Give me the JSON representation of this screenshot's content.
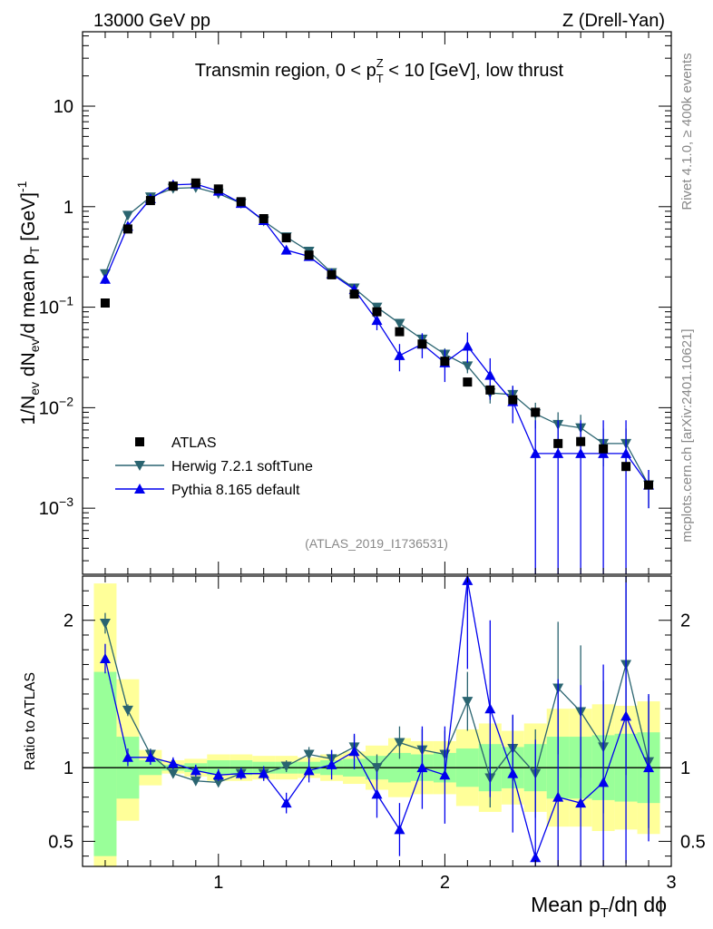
{
  "header": {
    "left": "13000 GeV pp",
    "right": "Z (Drell-Yan)"
  },
  "side": {
    "rivet": "Rivet 4.1.0, ≥ 400k events",
    "mcplots": "mcplots.cern.ch [arXiv:2401.10621]"
  },
  "chart_data": [
    {
      "type": "line",
      "panel": "main",
      "title": "Transmin region, 0 < p_T^Z < 10 [GeV], low thrust",
      "title_parts": {
        "pre": "Transmin region, 0 < p",
        "sup": "Z",
        "sub": "T",
        "post": " < 10 [GeV], low thrust"
      },
      "ylabel": "1/N_ev dN_ev/d mean p_T [GeV]^-1",
      "ylabel_parts": {
        "a": "1/N",
        "a_sub": "ev",
        "b": " dN",
        "b_sub": "ev",
        "c": "/d mean p",
        "c_sub": "T",
        "d": " [GeV]",
        "d_sup": "-1"
      },
      "yscale": "log",
      "ylim": [
        0.00022,
        55
      ],
      "xlim": [
        0.4,
        3.0
      ],
      "yticks": [
        {
          "value": 10,
          "base": "10",
          "exp": ""
        },
        {
          "value": 1,
          "base": "1",
          "exp": ""
        },
        {
          "value": 0.1,
          "base": "10",
          "exp": "−1"
        },
        {
          "value": 0.01,
          "base": "10",
          "exp": "−2"
        },
        {
          "value": 0.001,
          "base": "10",
          "exp": "−3"
        }
      ],
      "watermark": "(ATLAS_2019_I1736531)",
      "legend": [
        "ATLAS",
        "Herwig 7.2.1 softTune",
        "Pythia 8.165 default"
      ],
      "legend_position": "lower-left",
      "x": [
        0.5,
        0.6,
        0.7,
        0.8,
        0.9,
        1.0,
        1.1,
        1.2,
        1.3,
        1.4,
        1.5,
        1.6,
        1.7,
        1.8,
        1.9,
        2.0,
        2.1,
        2.2,
        2.3,
        2.4,
        2.5,
        2.6,
        2.7,
        2.8,
        2.9
      ],
      "series": [
        {
          "name": "ATLAS",
          "color": "#000000",
          "marker": "square",
          "values": [
            0.11,
            0.6,
            1.15,
            1.6,
            1.72,
            1.5,
            1.12,
            0.76,
            0.49,
            0.33,
            0.21,
            0.135,
            0.09,
            0.057,
            0.043,
            0.029,
            0.018,
            0.015,
            0.012,
            0.009,
            0.0044,
            0.0046,
            0.0039,
            0.0026,
            0.0017
          ]
        },
        {
          "name": "Herwig 7.2.1 softTune",
          "color": "#2a6470",
          "marker": "triangle-down",
          "values": [
            0.215,
            0.82,
            1.25,
            1.52,
            1.55,
            1.35,
            1.08,
            0.72,
            0.5,
            0.36,
            0.22,
            0.155,
            0.1,
            0.069,
            0.048,
            0.034,
            0.026,
            0.014,
            0.0135,
            0.0087,
            0.0068,
            0.0063,
            0.0044,
            0.0044,
            0.0017
          ],
          "err_lo": [
            0.015,
            0.03,
            0.04,
            0.05,
            0.05,
            0.04,
            0.03,
            0.03,
            0.02,
            0.02,
            0.015,
            0.012,
            0.009,
            0.007,
            0.006,
            0.005,
            0.004,
            0.003,
            0.003,
            0.0025,
            0.0022,
            0.0022,
            0.0018,
            0.0018,
            0.0007
          ],
          "err_hi": [
            0.015,
            0.03,
            0.04,
            0.05,
            0.05,
            0.04,
            0.03,
            0.03,
            0.02,
            0.02,
            0.015,
            0.012,
            0.009,
            0.007,
            0.006,
            0.005,
            0.004,
            0.003,
            0.003,
            0.0025,
            0.0022,
            0.0022,
            0.0018,
            0.0018,
            0.0007
          ]
        },
        {
          "name": "Pythia 8.165 default",
          "color": "#0000ee",
          "marker": "triangle-up",
          "values": [
            0.19,
            0.64,
            1.2,
            1.65,
            1.68,
            1.43,
            1.08,
            0.73,
            0.37,
            0.32,
            0.215,
            0.15,
            0.074,
            0.033,
            0.043,
            0.028,
            0.041,
            0.021,
            0.0115,
            0.0035,
            0.0035,
            0.0035,
            0.0035,
            0.0035,
            0.0017
          ],
          "err_lo": [
            0.02,
            0.04,
            0.05,
            0.06,
            0.06,
            0.05,
            0.04,
            0.04,
            0.03,
            0.025,
            0.02,
            0.018,
            0.015,
            0.01,
            0.012,
            0.01,
            0.013,
            0.009,
            0.0045,
            0.0034,
            0.0034,
            0.0034,
            0.0034,
            0.0034,
            0.0007
          ],
          "err_hi": [
            0.02,
            0.04,
            0.05,
            0.06,
            0.06,
            0.05,
            0.04,
            0.04,
            0.03,
            0.025,
            0.02,
            0.018,
            0.015,
            0.01,
            0.012,
            0.01,
            0.015,
            0.01,
            0.005,
            0.004,
            0.004,
            0.004,
            0.004,
            0.004,
            0.0007
          ]
        }
      ]
    },
    {
      "type": "line",
      "panel": "ratio",
      "ylabel": "Ratio to ATLAS",
      "xlabel": "Mean p_T/dη dϕ",
      "xlabel_parts": {
        "pre": "Mean p",
        "sub": "T",
        "post": "/dη dϕ"
      },
      "ylim": [
        0.33,
        2.3
      ],
      "xlim": [
        0.4,
        3.0
      ],
      "yticks": [
        0.5,
        1,
        2
      ],
      "ytick_labels": [
        "0.5",
        "1",
        "2"
      ],
      "xticks": [
        1,
        2,
        3
      ],
      "xtick_labels": [
        "1",
        "2",
        "3"
      ],
      "reference": 1.0,
      "bands": {
        "x_edges": [
          0.45,
          0.55,
          0.65,
          0.75,
          0.85,
          0.95,
          1.05,
          1.15,
          1.25,
          1.35,
          1.45,
          1.55,
          1.65,
          1.75,
          1.85,
          1.95,
          2.05,
          2.15,
          2.25,
          2.35,
          2.45,
          2.55,
          2.65,
          2.75,
          2.85,
          2.95
        ],
        "green_lo": [
          0.4,
          0.79,
          0.95,
          0.98,
          0.97,
          0.95,
          0.95,
          0.96,
          0.96,
          0.96,
          0.95,
          0.94,
          0.92,
          0.9,
          0.91,
          0.9,
          0.87,
          0.84,
          0.86,
          0.84,
          0.79,
          0.79,
          0.78,
          0.77,
          0.76
        ],
        "green_hi": [
          1.65,
          1.21,
          1.05,
          1.02,
          1.03,
          1.05,
          1.05,
          1.04,
          1.04,
          1.04,
          1.05,
          1.06,
          1.08,
          1.1,
          1.09,
          1.1,
          1.13,
          1.16,
          1.14,
          1.16,
          1.21,
          1.21,
          1.22,
          1.23,
          1.24
        ],
        "yellow_lo": [
          0.33,
          0.64,
          0.88,
          0.96,
          0.94,
          0.91,
          0.91,
          0.92,
          0.92,
          0.93,
          0.91,
          0.89,
          0.85,
          0.8,
          0.82,
          0.82,
          0.74,
          0.7,
          0.75,
          0.7,
          0.6,
          0.6,
          0.57,
          0.58,
          0.55
        ],
        "yellow_hi": [
          2.25,
          1.6,
          1.12,
          1.05,
          1.06,
          1.09,
          1.09,
          1.08,
          1.08,
          1.07,
          1.09,
          1.11,
          1.15,
          1.2,
          1.18,
          1.18,
          1.26,
          1.3,
          1.25,
          1.3,
          1.4,
          1.4,
          1.43,
          1.42,
          1.45
        ]
      },
      "series": [
        {
          "name": "Herwig 7.2.1 softTune",
          "color": "#2a6470",
          "marker": "triangle-down",
          "values": [
            1.98,
            1.39,
            1.09,
            0.96,
            0.91,
            0.9,
            0.96,
            0.96,
            1.01,
            1.09,
            1.06,
            1.14,
            1.0,
            1.17,
            1.12,
            1.09,
            1.45,
            0.93,
            1.13,
            0.96,
            1.54,
            1.38,
            1.14,
            1.7,
            1.04
          ],
          "err_lo": [
            0.07,
            0.04,
            0.04,
            0.03,
            0.03,
            0.03,
            0.03,
            0.04,
            0.04,
            0.05,
            0.06,
            0.08,
            0.09,
            0.11,
            0.14,
            0.16,
            0.2,
            0.2,
            0.22,
            0.3,
            0.45,
            0.45,
            0.45,
            0.75,
            0.45
          ],
          "err_hi": [
            0.07,
            0.04,
            0.04,
            0.03,
            0.03,
            0.03,
            0.03,
            0.04,
            0.04,
            0.05,
            0.06,
            0.08,
            0.09,
            0.11,
            0.14,
            0.16,
            0.2,
            0.2,
            0.22,
            0.3,
            0.45,
            0.45,
            0.45,
            0.75,
            0.45
          ]
        },
        {
          "name": "Pythia 8.165 default",
          "color": "#0000ee",
          "marker": "triangle-up",
          "values": [
            1.74,
            1.07,
            1.07,
            1.03,
            0.98,
            0.95,
            0.96,
            0.96,
            0.76,
            0.98,
            1.02,
            1.11,
            0.82,
            0.58,
            1.0,
            0.95,
            2.27,
            1.4,
            0.96,
            0.39,
            0.8,
            0.76,
            0.9,
            1.35,
            1.0
          ],
          "err_lo": [
            0.1,
            0.06,
            0.05,
            0.04,
            0.04,
            0.04,
            0.04,
            0.05,
            0.07,
            0.08,
            0.1,
            0.12,
            0.16,
            0.18,
            0.28,
            0.33,
            0.6,
            0.6,
            0.4,
            0.8,
            0.8,
            0.8,
            0.8,
            1.0,
            0.5
          ],
          "err_hi": [
            0.1,
            0.06,
            0.05,
            0.04,
            0.04,
            0.04,
            0.04,
            0.05,
            0.07,
            0.08,
            0.1,
            0.12,
            0.16,
            0.18,
            0.28,
            0.33,
            0.6,
            0.6,
            0.4,
            0.8,
            0.8,
            0.8,
            0.8,
            1.0,
            0.5
          ]
        }
      ]
    }
  ]
}
